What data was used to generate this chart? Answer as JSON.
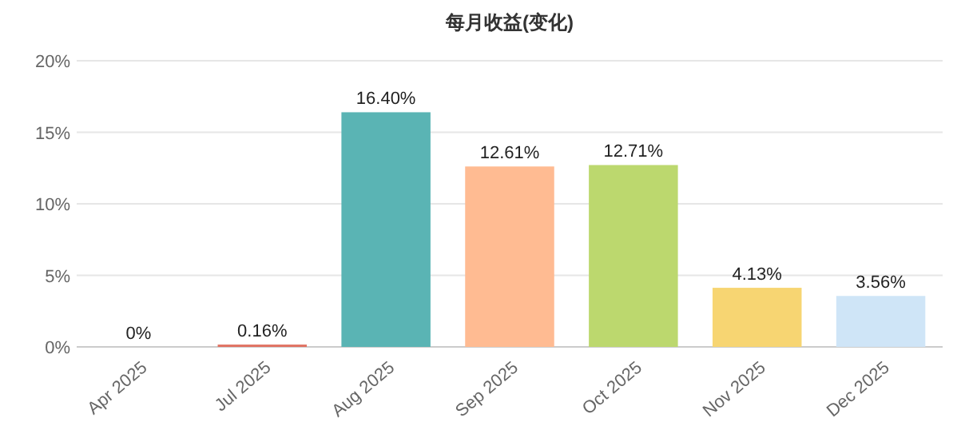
{
  "chart_data": {
    "type": "bar",
    "title": "每月收益(变化)",
    "categories": [
      "Apr 2025",
      "Jul 2025",
      "Aug 2025",
      "Sep 2025",
      "Oct 2025",
      "Nov 2025",
      "Dec 2025"
    ],
    "values": [
      0,
      0.16,
      16.4,
      12.61,
      12.71,
      4.13,
      3.56
    ],
    "value_labels": [
      "0%",
      "0.16%",
      "16.40%",
      "12.61%",
      "12.71%",
      "4.13%",
      "3.56%"
    ],
    "colors": [
      "#5ab4b4",
      "#e07060",
      "#5ab4b4",
      "#ffbb92",
      "#bcd86e",
      "#f7d572",
      "#cfe5f7"
    ],
    "ylim": [
      0,
      20
    ],
    "yticks": [
      {
        "value": 0,
        "label": "0%"
      },
      {
        "value": 5,
        "label": "5%"
      },
      {
        "value": 10,
        "label": "10%"
      },
      {
        "value": 15,
        "label": "15%"
      },
      {
        "value": 20,
        "label": "20%"
      }
    ],
    "grid": "y"
  }
}
